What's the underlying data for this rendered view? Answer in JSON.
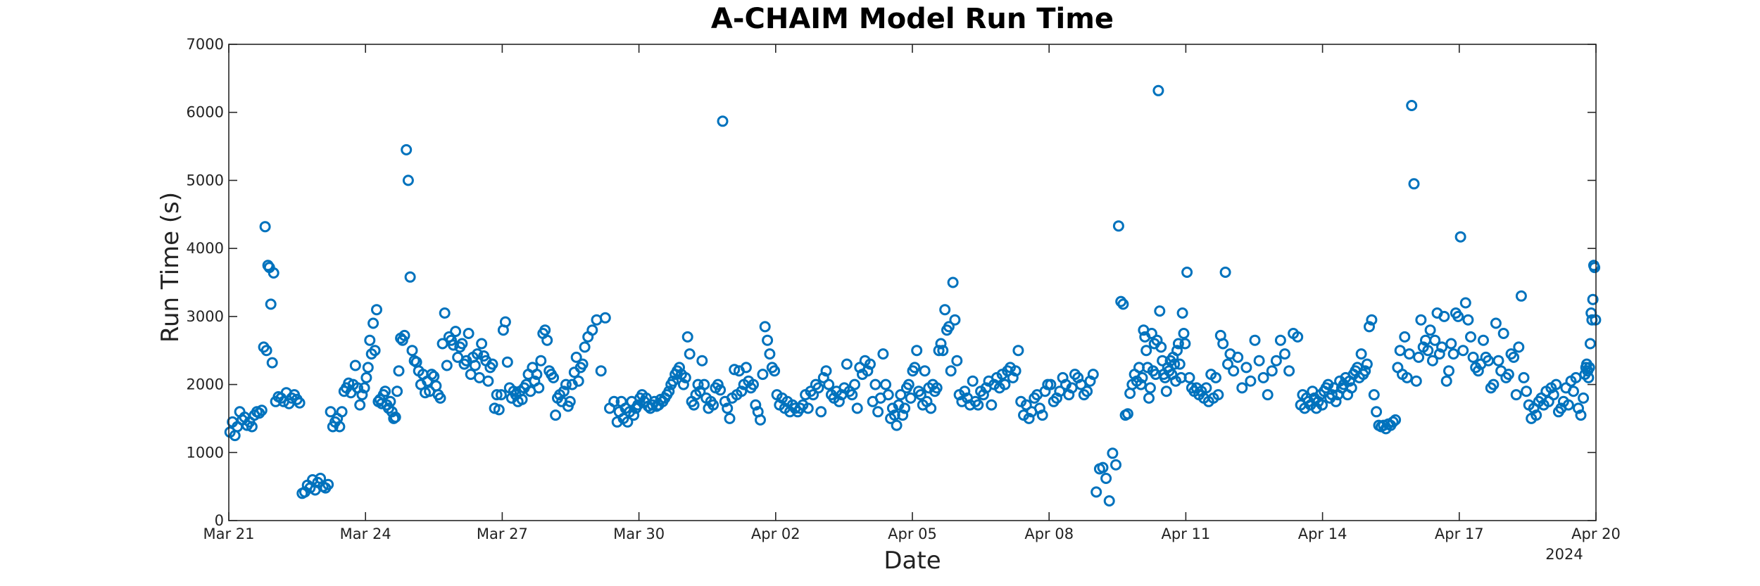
{
  "chart_data": {
    "type": "scatter",
    "title": "A-CHAIM Model Run Time",
    "xlabel": "Date",
    "ylabel": "Run Time (s)",
    "xlim": [
      "2024-03-21",
      "2024-04-20"
    ],
    "ylim": [
      0,
      7000
    ],
    "x_ticks": [
      "Mar 21",
      "Mar 24",
      "Mar 27",
      "Mar 30",
      "Apr 02",
      "Apr 05",
      "Apr 08",
      "Apr 11",
      "Apr 14",
      "Apr 17",
      "Apr 20"
    ],
    "x_tick_dates": [
      "2024-03-21",
      "2024-03-24",
      "2024-03-27",
      "2024-03-30",
      "2024-04-02",
      "2024-04-05",
      "2024-04-08",
      "2024-04-11",
      "2024-04-14",
      "2024-04-17",
      "2024-04-20"
    ],
    "year_label": "2024",
    "y_ticks": [
      0,
      1000,
      2000,
      3000,
      4000,
      5000,
      6000,
      7000
    ],
    "grid": false,
    "marker": "open-circle",
    "color": "#0072BD",
    "segments": [
      {
        "start": "2024-03-21 00:00",
        "end": "2024-03-21 18:00",
        "values": [
          1300,
          1450,
          1250,
          1380,
          1600,
          1480,
          1520,
          1400,
          1450,
          1380,
          1550,
          1600,
          1580,
          1620
        ]
      },
      {
        "start": "2024-03-21 18:00",
        "end": "2024-03-22 00:00",
        "values": [
          2550,
          4320,
          2500,
          3750,
          3720,
          3180,
          2320,
          3640
        ]
      },
      {
        "start": "2024-03-22 00:00",
        "end": "2024-03-22 14:00",
        "values": [
          1750,
          1820,
          1800,
          1750,
          1880,
          1720,
          1800,
          1850,
          1780,
          1730
        ]
      },
      {
        "start": "2024-03-22 14:00",
        "end": "2024-03-23 05:00",
        "values": [
          400,
          420,
          520,
          480,
          600,
          450,
          560,
          620,
          500,
          480,
          530
        ]
      },
      {
        "start": "2024-03-23 05:00",
        "end": "2024-03-24 00:00",
        "values": [
          1600,
          1380,
          1450,
          1500,
          1380,
          1600,
          1900,
          1950,
          2020,
          1880,
          2000,
          2280,
          1950,
          1700,
          1850,
          1950
        ]
      },
      {
        "start": "2024-03-24 00:00",
        "end": "2024-03-24 18:00",
        "values": [
          2100,
          2250,
          2650,
          2450,
          2900,
          2500,
          3100,
          1750,
          1780,
          1720,
          1850,
          1900,
          1700,
          1650,
          1750,
          1600,
          1500,
          1520,
          1900,
          2200
        ]
      },
      {
        "start": "2024-03-24 18:00",
        "end": "2024-03-25 00:00",
        "values": [
          2680,
          2650,
          2720,
          5450,
          5000,
          3580
        ]
      },
      {
        "start": "2024-03-25 00:00",
        "end": "2024-03-27 00:00",
        "values": [
          2500,
          2350,
          2330,
          2200,
          2000,
          2150,
          1880,
          2050,
          1900,
          2150,
          2120,
          1980,
          1850,
          1800,
          2600,
          3050,
          2280,
          2700,
          2650,
          2580,
          2780,
          2400,
          2550,
          2600,
          2300,
          2350,
          2750,
          2150,
          2400,
          2280,
          2450,
          2100,
          2600,
          2420,
          2350,
          2050,
          2250,
          2300,
          1650,
          1850,
          1630,
          1850
        ]
      },
      {
        "start": "2024-03-27 00:00",
        "end": "2024-03-28 20:00",
        "values": [
          2800,
          2920,
          2330,
          1950,
          1800,
          1900,
          1850,
          1750,
          1900,
          1780,
          1950,
          2000,
          2150,
          1900,
          2250,
          2050,
          2150,
          1950,
          2350,
          2750,
          2800,
          2650,
          2200,
          2150,
          2100,
          1550,
          1800,
          1850,
          1750,
          1900,
          2000,
          1680,
          1750,
          2000,
          2180,
          2400,
          2050,
          2250,
          2300,
          2550
        ]
      },
      {
        "start": "2024-03-28 20:00",
        "end": "2024-03-29 12:00",
        "values": [
          2700,
          2800,
          2950,
          2200,
          2980,
          1650,
          1750
        ]
      },
      {
        "start": "2024-03-29 12:00",
        "end": "2024-03-31 12:00",
        "values": [
          1450,
          1600,
          1750,
          1500,
          1650,
          1450,
          1600,
          1750,
          1550,
          1650,
          1700,
          1800,
          1850,
          1750,
          1800,
          1680,
          1650,
          1700,
          1750,
          1680,
          1700,
          1780,
          1750,
          1800,
          1850,
          1900,
          2000,
          2050,
          2150,
          2200,
          2250,
          2150,
          2000,
          2100,
          2700,
          2450,
          1750,
          1700,
          1850,
          2000,
          1900,
          2350,
          2000,
          1800
        ]
      },
      {
        "start": "2024-03-31 12:00",
        "end": "2024-04-02 00:00",
        "values": [
          1650,
          1750,
          1700,
          1950,
          2000,
          1920,
          5870,
          1750,
          1650,
          1500,
          1800,
          2220,
          1850,
          2200,
          1900,
          2000,
          2250,
          2050,
          1950,
          2000,
          1700,
          1600,
          1480,
          2150,
          2850,
          2650,
          2450,
          2250,
          2200
        ]
      },
      {
        "start": "2024-04-02 00:00",
        "end": "2024-04-04 12:00",
        "values": [
          1850,
          1700,
          1800,
          1650,
          1750,
          1600,
          1700,
          1650,
          1600,
          1650,
          1700,
          1850,
          1650,
          1900,
          1850,
          2000,
          1950,
          1600,
          2100,
          2200,
          2000,
          1850,
          1800,
          1900,
          1750,
          1850,
          1950,
          2300,
          1900,
          1850,
          2000,
          1650,
          2250,
          2150,
          2350,
          2200,
          2300,
          1750,
          2000,
          1600,
          1800,
          2450,
          2000,
          1850
        ]
      },
      {
        "start": "2024-04-04 12:00",
        "end": "2024-04-06 00:00",
        "values": [
          1500,
          1650,
          1550,
          1400,
          1700,
          1850,
          1550,
          1650,
          1950,
          2000,
          1800,
          2200,
          2250,
          2500,
          1900,
          1850,
          1700,
          2200,
          1750,
          1950,
          1650,
          2000,
          1900,
          1950,
          2500,
          2600,
          2500,
          3100,
          2800,
          2850,
          2200,
          3500,
          2950,
          2350
        ]
      },
      {
        "start": "2024-04-06 00:00",
        "end": "2024-04-08 00:00",
        "values": [
          1850,
          1750,
          1900,
          1800,
          1700,
          2050,
          1750,
          1700,
          1900,
          1850,
          1950,
          2050,
          1700,
          2000,
          2100,
          1950,
          2150,
          2000,
          2200,
          2250,
          2100,
          2200,
          2500,
          1750,
          1550,
          1700,
          1500,
          1600,
          1800,
          1850,
          1650,
          1550,
          1900,
          2000
        ]
      },
      {
        "start": "2024-04-08 00:00",
        "end": "2024-04-09 00:00",
        "values": [
          2000,
          1750,
          1800,
          1900,
          2100,
          2000,
          1850,
          1950,
          2150,
          2100,
          2000,
          1850,
          1900,
          2050,
          2150
        ]
      },
      {
        "start": "2024-04-09 00:00",
        "end": "2024-04-09 12:00",
        "values": [
          420,
          760,
          780,
          620,
          290,
          990,
          820
        ]
      },
      {
        "start": "2024-04-09 12:00",
        "end": "2024-04-10 00:00",
        "values": [
          4330,
          3220,
          3180,
          1550,
          1570,
          1870,
          2000,
          2150,
          2050,
          2250
        ]
      },
      {
        "start": "2024-04-10 00:00",
        "end": "2024-04-11 00:00",
        "values": [
          2000,
          2100,
          2800,
          2700,
          2500,
          2250,
          1800,
          1950,
          2750,
          2200,
          2600,
          2150,
          2650,
          6320,
          3080,
          2550,
          2350,
          2150,
          2100,
          1900,
          2250,
          2200,
          2350,
          2150,
          2400,
          2300,
          2050,
          2500,
          2600,
          2300,
          2100,
          3050,
          2750,
          2600
        ]
      },
      {
        "start": "2024-04-11 00:00",
        "end": "2024-04-12 00:00",
        "values": [
          3650,
          2100,
          1950,
          1900,
          1950,
          1850,
          1900,
          1800,
          1950,
          1750,
          2150,
          1800,
          2100,
          1850,
          2720,
          2600,
          3650,
          2300,
          2450
        ]
      },
      {
        "start": "2024-04-12 00:00",
        "end": "2024-04-13 12:00",
        "values": [
          2200,
          2400,
          1950,
          2250,
          2050,
          2650,
          2350,
          2100,
          1850,
          2200,
          2350,
          2650,
          2450,
          2200,
          2750,
          2700
        ]
      },
      {
        "start": "2024-04-13 12:00",
        "end": "2024-04-15 00:00",
        "values": [
          1700,
          1850,
          1650,
          1800,
          1750,
          1700,
          1900,
          1800,
          1650,
          1750,
          1850,
          1700,
          1900,
          1950,
          2000,
          1800,
          1850,
          1950,
          1750,
          1850,
          2050,
          1950,
          2000,
          2100,
          1850,
          2050,
          1950,
          2150,
          2200,
          2250,
          2100,
          2450,
          2150,
          2200,
          2300
        ]
      },
      {
        "start": "2024-04-15 00:00",
        "end": "2024-04-15 15:00",
        "values": [
          2850,
          2950,
          1850,
          1600,
          1400,
          1380,
          1400,
          1350,
          1420,
          1400,
          1450,
          1480
        ]
      },
      {
        "start": "2024-04-15 15:00",
        "end": "2024-04-17 00:00",
        "values": [
          2250,
          2500,
          2150,
          2700,
          2100,
          2450,
          6100,
          4950,
          2050,
          2400,
          2950,
          2550,
          2650,
          2500,
          2800,
          2350,
          2650,
          3050,
          2450,
          2550,
          3000,
          2050,
          2200,
          2600,
          2450,
          3050,
          3000
        ]
      },
      {
        "start": "2024-04-17 00:00",
        "end": "2024-04-18 12:00",
        "values": [
          4170,
          2500,
          3200,
          2950,
          2700,
          2400,
          2250,
          2200,
          2300,
          2650,
          2400,
          2350,
          1950,
          2000,
          2900,
          2350,
          2200,
          2750,
          2100,
          2150,
          2450,
          2400,
          1850,
          2550,
          3300,
          2100,
          1900
        ]
      },
      {
        "start": "2024-04-18 12:00",
        "end": "2024-04-19 18:00",
        "values": [
          1700,
          1500,
          1650,
          1550,
          1750,
          1800,
          1700,
          1900,
          1750,
          1950,
          1850,
          2000,
          1600,
          1650,
          1750,
          1950,
          1700,
          2050,
          1900,
          2100,
          1650,
          1550,
          1800
        ]
      },
      {
        "start": "2024-04-19 18:00",
        "end": "2024-04-20 00:00",
        "values": [
          2150,
          2250,
          2300,
          2200,
          2100,
          2250,
          2600,
          3050,
          2950,
          3250,
          3750,
          3720,
          2950
        ]
      }
    ]
  }
}
